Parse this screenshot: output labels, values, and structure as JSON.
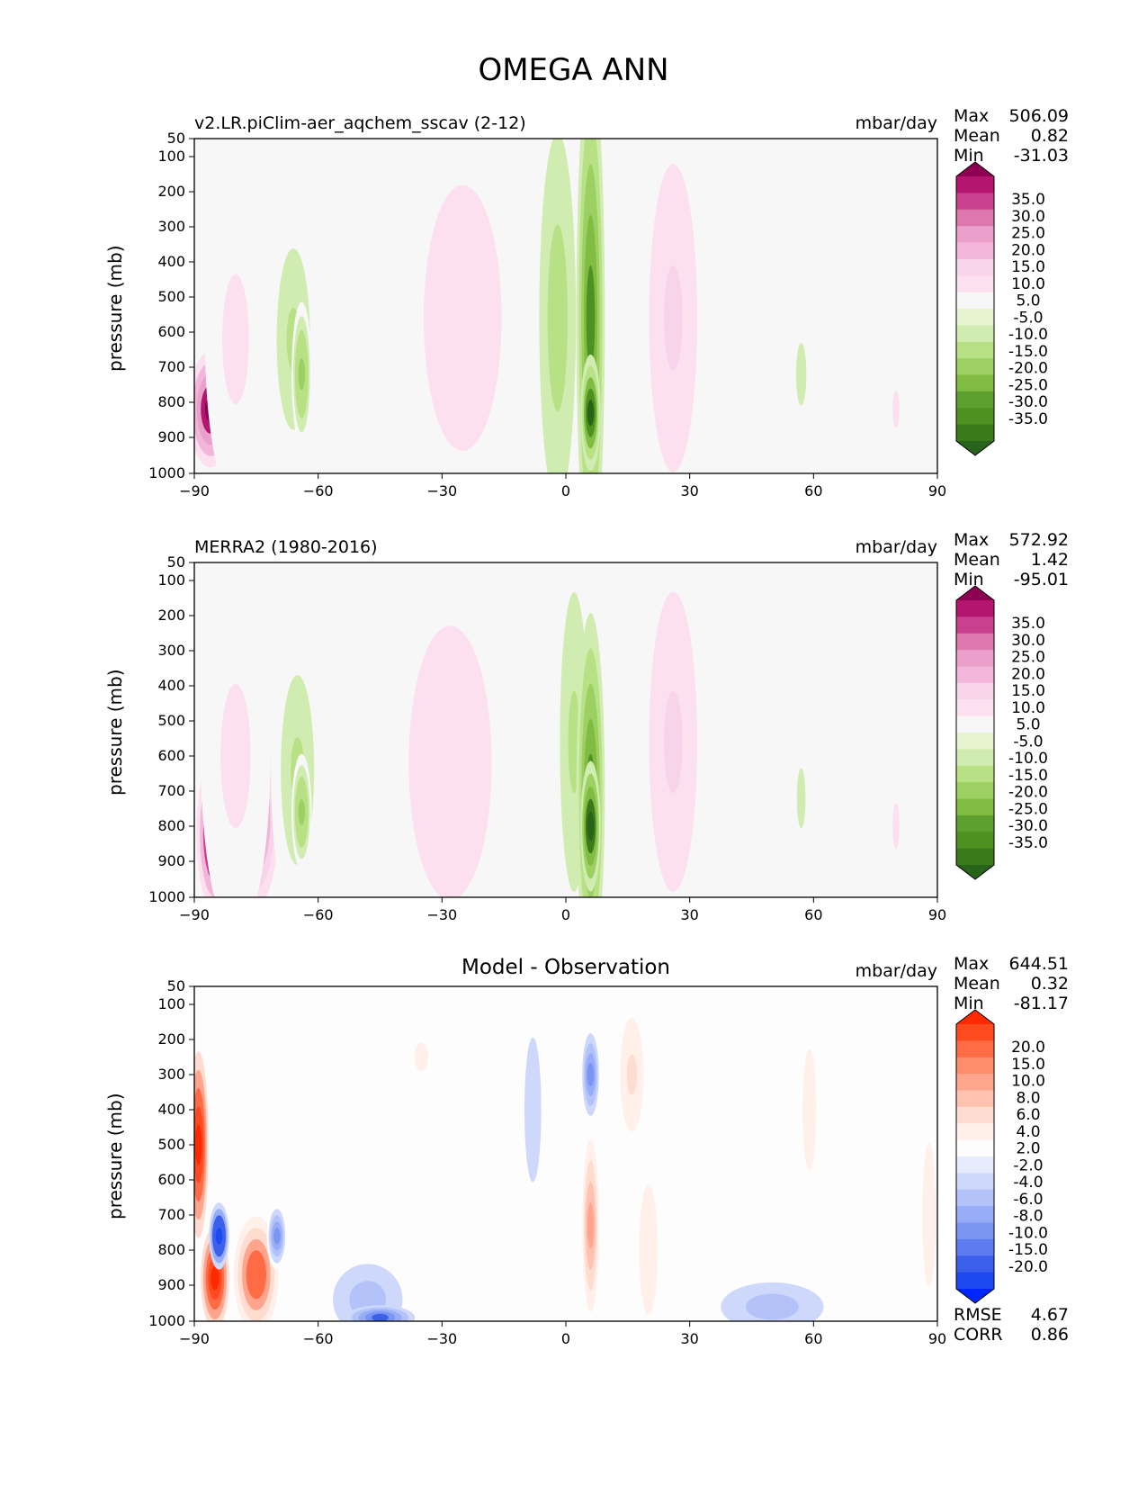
{
  "title": "OMEGA ANN",
  "panels": [
    {
      "title": "v2.LR.piClim-aer_aqchem_sscav (2-12)",
      "title_pos": "left",
      "units": "mbar/day",
      "stats": {
        "max_label": "Max",
        "max": "506.09",
        "mean_label": "Mean",
        "mean": "0.82",
        "min_label": "Min",
        "min": "-31.03"
      },
      "colorbar": {
        "labels": [
          "35.0",
          "30.0",
          "25.0",
          "20.0",
          "15.0",
          "10.0",
          "5.0",
          "-5.0",
          "-10.0",
          "-15.0",
          "-20.0",
          "-25.0",
          "-30.0",
          "-35.0"
        ],
        "colors": [
          "#8e0152",
          "#b3156f",
          "#c9408f",
          "#de77ae",
          "#eb9fcb",
          "#f1b6da",
          "#f7d4ea",
          "#fde0ef",
          "#f7f7f7",
          "#e6f5d0",
          "#d0ecb0",
          "#b8e186",
          "#9dd062",
          "#7fbc41",
          "#5da02f",
          "#4d9221",
          "#3a7a1a",
          "#276419"
        ]
      }
    },
    {
      "title": "MERRA2 (1980-2016)",
      "title_pos": "left",
      "units": "mbar/day",
      "stats": {
        "max_label": "Max",
        "max": "572.92",
        "mean_label": "Mean",
        "mean": "1.42",
        "min_label": "Min",
        "min": "-95.01"
      },
      "colorbar": {
        "labels": [
          "35.0",
          "30.0",
          "25.0",
          "20.0",
          "15.0",
          "10.0",
          "5.0",
          "-5.0",
          "-10.0",
          "-15.0",
          "-20.0",
          "-25.0",
          "-30.0",
          "-35.0"
        ],
        "colors": [
          "#8e0152",
          "#b3156f",
          "#c9408f",
          "#de77ae",
          "#eb9fcb",
          "#f1b6da",
          "#f7d4ea",
          "#fde0ef",
          "#f7f7f7",
          "#e6f5d0",
          "#d0ecb0",
          "#b8e186",
          "#9dd062",
          "#7fbc41",
          "#5da02f",
          "#4d9221",
          "#3a7a1a",
          "#276419"
        ]
      }
    },
    {
      "title": "Model - Observation",
      "title_pos": "center",
      "units": "mbar/day",
      "stats": {
        "max_label": "Max",
        "max": "644.51",
        "mean_label": "Mean",
        "mean": "0.32",
        "min_label": "Min",
        "min": "-81.17"
      },
      "extra": {
        "rmse_label": "RMSE",
        "rmse": "4.67",
        "corr_label": "CORR",
        "corr": "0.86"
      },
      "colorbar": {
        "labels": [
          "20.0",
          "15.0",
          "10.0",
          "8.0",
          "6.0",
          "4.0",
          "2.0",
          "-2.0",
          "-4.0",
          "-6.0",
          "-8.0",
          "-10.0",
          "-15.0",
          "-20.0"
        ],
        "colors": [
          "#ff2a00",
          "#ff4a20",
          "#ff6b45",
          "#ff8c6a",
          "#ffa58e",
          "#ffc2b0",
          "#ffdcd0",
          "#fff0ea",
          "#fdfdfd",
          "#e6ecfc",
          "#cdd8fb",
          "#b3c3fa",
          "#98adf7",
          "#7b95f3",
          "#5c7cef",
          "#3a60ec",
          "#1d47ef",
          "#0026ff"
        ]
      }
    }
  ],
  "chart_data": [
    {
      "type": "heatmap",
      "title": "v2.LR.piClim-aer_aqchem_sscav (2-12)",
      "units": "mbar/day",
      "xlabel": "",
      "ylabel": "pressure (mb)",
      "xlim": [
        -90,
        90
      ],
      "ylim": [
        1000,
        50
      ],
      "x_ticks": [
        -90,
        -60,
        -30,
        0,
        30,
        60,
        90
      ],
      "y_ticks": [
        50,
        100,
        200,
        300,
        400,
        500,
        600,
        700,
        800,
        900,
        1000
      ],
      "levels": [
        -35,
        -30,
        -25,
        -20,
        -15,
        -10,
        -5,
        5,
        10,
        15,
        20,
        25,
        30,
        35
      ],
      "features": [
        {
          "lat": -86,
          "p": 820,
          "w": 5,
          "h": 160,
          "v": 40
        },
        {
          "lat": -80,
          "p": 620,
          "w": 7,
          "h": 450,
          "v": 8
        },
        {
          "lat": -66,
          "p": 620,
          "w": 6,
          "h": 420,
          "v": -12
        },
        {
          "lat": -64,
          "p": 720,
          "w": 2,
          "h": 200,
          "v": -18
        },
        {
          "lat": -25,
          "p": 560,
          "w": 15,
          "h": 620,
          "v": 9
        },
        {
          "lat": -2,
          "p": 560,
          "w": 5,
          "h": 650,
          "v": -14
        },
        {
          "lat": 6,
          "p": 560,
          "w": 3,
          "h": 720,
          "v": -28
        },
        {
          "lat": 6,
          "p": 830,
          "w": 2,
          "h": 160,
          "v": -36
        },
        {
          "lat": 26,
          "p": 560,
          "w": 9,
          "h": 720,
          "v": 11
        },
        {
          "lat": 57,
          "p": 720,
          "w": 4,
          "h": 420,
          "v": -6
        },
        {
          "lat": 80,
          "p": 820,
          "w": 2,
          "h": 240,
          "v": 6
        }
      ]
    },
    {
      "type": "heatmap",
      "title": "MERRA2 (1980-2016)",
      "units": "mbar/day",
      "xlabel": "",
      "ylabel": "pressure (mb)",
      "xlim": [
        -90,
        90
      ],
      "ylim": [
        1000,
        50
      ],
      "x_ticks": [
        -90,
        -60,
        -30,
        0,
        30,
        60,
        90
      ],
      "y_ticks": [
        50,
        100,
        200,
        300,
        400,
        500,
        600,
        700,
        800,
        900,
        1000
      ],
      "levels": [
        -35,
        -30,
        -25,
        -20,
        -15,
        -10,
        -5,
        5,
        10,
        15,
        20,
        25,
        30,
        35
      ],
      "features": [
        {
          "lat": -85,
          "p": 820,
          "w": 4,
          "h": 220,
          "v": 42
        },
        {
          "lat": -75,
          "p": 780,
          "w": 5,
          "h": 240,
          "v": 28
        },
        {
          "lat": -80,
          "p": 600,
          "w": 8,
          "h": 500,
          "v": 8
        },
        {
          "lat": -65,
          "p": 640,
          "w": 6,
          "h": 440,
          "v": -12
        },
        {
          "lat": -64,
          "p": 760,
          "w": 2,
          "h": 160,
          "v": -18
        },
        {
          "lat": -28,
          "p": 620,
          "w": 16,
          "h": 640,
          "v": 9
        },
        {
          "lat": 2,
          "p": 560,
          "w": 5,
          "h": 700,
          "v": -12
        },
        {
          "lat": 6,
          "p": 700,
          "w": 3,
          "h": 500,
          "v": -26
        },
        {
          "lat": 6,
          "p": 800,
          "w": 2,
          "h": 180,
          "v": -40
        },
        {
          "lat": 26,
          "p": 560,
          "w": 9,
          "h": 700,
          "v": 12
        },
        {
          "lat": 57,
          "p": 720,
          "w": 3,
          "h": 400,
          "v": -6
        },
        {
          "lat": 80,
          "p": 800,
          "w": 2,
          "h": 300,
          "v": 6
        }
      ]
    },
    {
      "type": "heatmap",
      "title": "Model - Observation",
      "units": "mbar/day",
      "xlabel": "",
      "ylabel": "pressure (mb)",
      "xlim": [
        -90,
        90
      ],
      "ylim": [
        1000,
        50
      ],
      "x_ticks": [
        -90,
        -60,
        -30,
        0,
        30,
        60,
        90
      ],
      "y_ticks": [
        50,
        100,
        200,
        300,
        400,
        500,
        600,
        700,
        800,
        900,
        1000
      ],
      "levels": [
        -20,
        -15,
        -10,
        -8,
        -6,
        -4,
        -2,
        2,
        4,
        6,
        8,
        10,
        15,
        20
      ],
      "rmse": 4.67,
      "corr": 0.86,
      "features": [
        {
          "lat": -89,
          "p": 500,
          "w": 2,
          "h": 260,
          "v": 22
        },
        {
          "lat": -85,
          "p": 880,
          "w": 3,
          "h": 140,
          "v": 22
        },
        {
          "lat": -75,
          "p": 870,
          "w": 5,
          "h": 160,
          "v": 14
        },
        {
          "lat": -84,
          "p": 760,
          "w": 2,
          "h": 90,
          "v": -18
        },
        {
          "lat": -70,
          "p": 760,
          "w": 2,
          "h": 90,
          "v": -8
        },
        {
          "lat": -48,
          "p": 940,
          "w": 10,
          "h": 120,
          "v": -5
        },
        {
          "lat": -45,
          "p": 990,
          "w": 8,
          "h": 30,
          "v": -12
        },
        {
          "lat": -35,
          "p": 250,
          "w": 3,
          "h": 90,
          "v": 3
        },
        {
          "lat": -8,
          "p": 400,
          "w": 4,
          "h": 500,
          "v": -3
        },
        {
          "lat": 6,
          "p": 300,
          "w": 2,
          "h": 140,
          "v": -8
        },
        {
          "lat": 6,
          "p": 730,
          "w": 2,
          "h": 300,
          "v": 9
        },
        {
          "lat": 16,
          "p": 300,
          "w": 4,
          "h": 260,
          "v": 5
        },
        {
          "lat": 20,
          "p": 800,
          "w": 3,
          "h": 300,
          "v": 4
        },
        {
          "lat": 50,
          "p": 960,
          "w": 15,
          "h": 80,
          "v": -5
        },
        {
          "lat": 59,
          "p": 400,
          "w": 3,
          "h": 420,
          "v": 3
        },
        {
          "lat": 88,
          "p": 700,
          "w": 3,
          "h": 500,
          "v": 3
        }
      ]
    }
  ]
}
